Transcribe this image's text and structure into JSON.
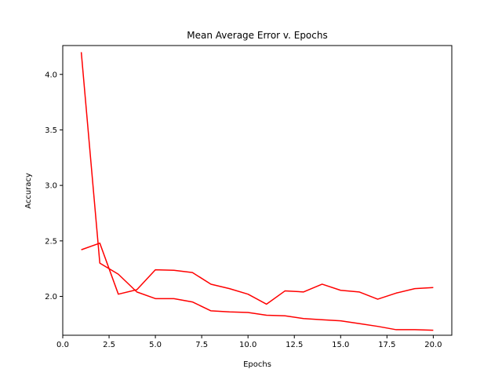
{
  "chart_data": {
    "type": "line",
    "title": "Mean Average Error v. Epochs",
    "xlabel": "Epochs",
    "ylabel": "Accuracy",
    "xlim": [
      0.0,
      21.0
    ],
    "ylim": [
      1.65,
      4.26
    ],
    "x_ticks": [
      0.0,
      2.5,
      5.0,
      7.5,
      10.0,
      12.5,
      15.0,
      17.5,
      20.0
    ],
    "x_tick_labels": [
      "0.0",
      "2.5",
      "5.0",
      "7.5",
      "10.0",
      "12.5",
      "15.0",
      "17.5",
      "20.0"
    ],
    "y_ticks": [
      2.0,
      2.5,
      3.0,
      3.5,
      4.0
    ],
    "y_tick_labels": [
      "2.0",
      "2.5",
      "3.0",
      "3.5",
      "4.0"
    ],
    "grid": false,
    "x": [
      1,
      2,
      3,
      4,
      5,
      6,
      7,
      8,
      9,
      10,
      11,
      12,
      13,
      14,
      15,
      16,
      17,
      18,
      19,
      20
    ],
    "series": [
      {
        "color": "#ff0000",
        "values": [
          4.2,
          2.3,
          2.2,
          2.04,
          1.98,
          1.98,
          1.95,
          1.87,
          1.86,
          1.855,
          1.83,
          1.825,
          1.8,
          1.79,
          1.78,
          1.755,
          1.73,
          1.7,
          1.7,
          1.695
        ]
      },
      {
        "color": "#ff0000",
        "values": [
          2.42,
          2.48,
          2.02,
          2.06,
          2.24,
          2.235,
          2.215,
          2.11,
          2.07,
          2.02,
          1.93,
          2.05,
          2.04,
          2.11,
          2.055,
          2.04,
          1.975,
          2.03,
          2.07,
          2.08
        ]
      }
    ]
  }
}
